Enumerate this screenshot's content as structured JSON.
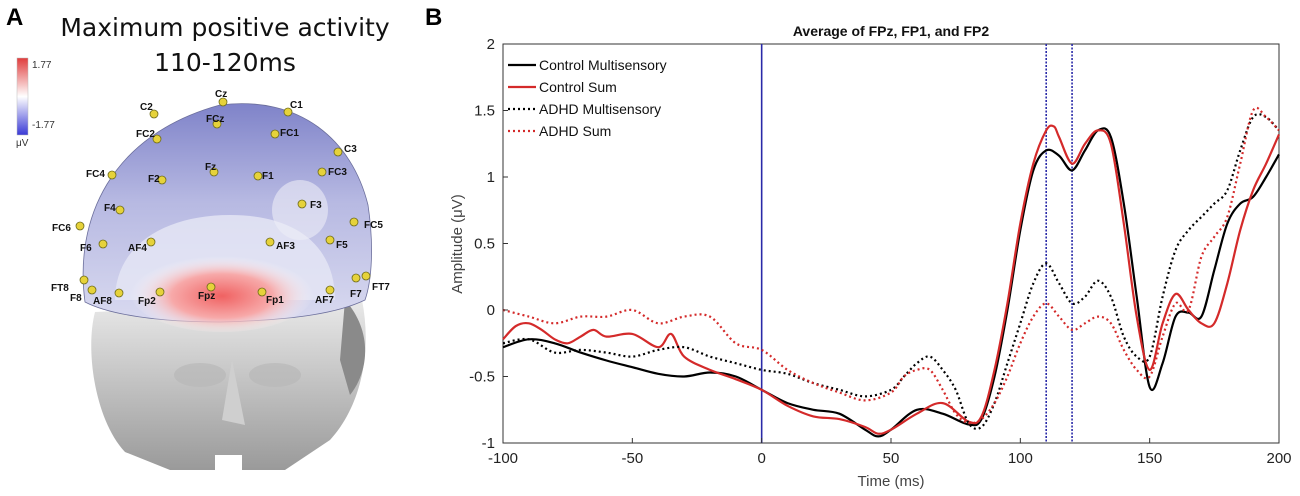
{
  "panels": {
    "a_letter": "A",
    "b_letter": "B"
  },
  "topomap": {
    "title_line1": "Maximum positive activity",
    "title_line2": "110-120ms",
    "colorbar": {
      "max_label": "1.77",
      "min_label": "-1.77",
      "unit": "μV",
      "max_color": "#e03c3c",
      "mid_color": "#ffffff",
      "min_color": "#3a3ad6"
    },
    "electrodes": [
      "Cz",
      "C2",
      "C1",
      "FC2",
      "FCz",
      "FC1",
      "C3",
      "FC4",
      "F2",
      "Fz",
      "F1",
      "FC3",
      "F4",
      "F3",
      "FC6",
      "FC5",
      "F6",
      "AF4",
      "AF3",
      "F5",
      "FT8",
      "F8",
      "AF8",
      "Fp2",
      "Fpz",
      "Fp1",
      "AF7",
      "F7",
      "FT7"
    ]
  },
  "chart_data": {
    "type": "line",
    "title": "Average of FPz, FP1, and FP2",
    "xlabel": "Time (ms)",
    "ylabel": "Amplitude (μV)",
    "xlim": [
      -100,
      200
    ],
    "ylim": [
      -1,
      2
    ],
    "xticks": [
      -100,
      -50,
      0,
      50,
      100,
      150,
      200
    ],
    "yticks": [
      -1,
      -0.5,
      0,
      0.5,
      1,
      1.5,
      2
    ],
    "xtick_labels": [
      "-100",
      "-50",
      "0",
      "50",
      "100",
      "150",
      "200"
    ],
    "ytick_labels": [
      "-1",
      "-0.5",
      "0",
      "0.5",
      "1",
      "1.5",
      "2"
    ],
    "vlines": [
      0,
      110,
      120
    ],
    "vline_color": "#2a2aa8",
    "grid": false,
    "legend_position": "top-left",
    "series": [
      {
        "name": "Control Multisensory",
        "color": "#000000",
        "dash": "solid",
        "x": [
          -100,
          -90,
          -80,
          -70,
          -60,
          -50,
          -40,
          -30,
          -20,
          -10,
          0,
          10,
          20,
          30,
          40,
          45,
          50,
          60,
          70,
          80,
          85,
          90,
          95,
          100,
          105,
          110,
          115,
          120,
          125,
          130,
          135,
          140,
          145,
          150,
          155,
          160,
          165,
          170,
          175,
          180,
          185,
          190,
          195,
          200
        ],
        "y": [
          -0.28,
          -0.22,
          -0.25,
          -0.32,
          -0.38,
          -0.43,
          -0.48,
          -0.5,
          -0.47,
          -0.5,
          -0.6,
          -0.7,
          -0.75,
          -0.78,
          -0.9,
          -0.95,
          -0.9,
          -0.75,
          -0.78,
          -0.86,
          -0.82,
          -0.5,
          0.0,
          0.6,
          1.05,
          1.2,
          1.16,
          1.05,
          1.2,
          1.35,
          1.3,
          0.8,
          0.1,
          -0.58,
          -0.4,
          -0.05,
          -0.02,
          -0.05,
          0.3,
          0.65,
          0.8,
          0.85,
          1.0,
          1.17
        ]
      },
      {
        "name": "Control Sum",
        "color": "#d42a2a",
        "dash": "solid",
        "x": [
          -100,
          -95,
          -90,
          -85,
          -80,
          -75,
          -70,
          -65,
          -60,
          -50,
          -40,
          -35,
          -30,
          -20,
          -10,
          0,
          10,
          20,
          30,
          40,
          45,
          50,
          60,
          70,
          80,
          85,
          90,
          95,
          100,
          105,
          110,
          113,
          115,
          120,
          125,
          130,
          135,
          140,
          145,
          150,
          155,
          160,
          165,
          170,
          175,
          180,
          185,
          190,
          195,
          200
        ],
        "y": [
          -0.22,
          -0.12,
          -0.1,
          -0.15,
          -0.22,
          -0.25,
          -0.2,
          -0.15,
          -0.2,
          -0.18,
          -0.28,
          -0.18,
          -0.35,
          -0.45,
          -0.52,
          -0.6,
          -0.72,
          -0.8,
          -0.82,
          -0.88,
          -0.93,
          -0.9,
          -0.78,
          -0.7,
          -0.84,
          -0.8,
          -0.45,
          0.05,
          0.65,
          1.1,
          1.35,
          1.38,
          1.3,
          1.1,
          1.25,
          1.35,
          1.25,
          0.65,
          -0.05,
          -0.45,
          -0.1,
          0.12,
          0.0,
          -0.1,
          -0.1,
          0.2,
          0.6,
          0.9,
          1.1,
          1.32
        ]
      },
      {
        "name": "ADHD Multisensory",
        "color": "#000000",
        "dash": "dotted",
        "x": [
          -100,
          -90,
          -80,
          -70,
          -60,
          -50,
          -40,
          -30,
          -20,
          -10,
          0,
          10,
          20,
          30,
          40,
          50,
          55,
          60,
          65,
          70,
          75,
          80,
          85,
          90,
          95,
          100,
          105,
          110,
          115,
          120,
          125,
          130,
          135,
          140,
          145,
          150,
          155,
          160,
          165,
          170,
          175,
          180,
          185,
          190,
          195,
          200
        ],
        "y": [
          -0.25,
          -0.22,
          -0.32,
          -0.3,
          -0.32,
          -0.35,
          -0.3,
          -0.28,
          -0.35,
          -0.4,
          -0.45,
          -0.48,
          -0.55,
          -0.6,
          -0.65,
          -0.6,
          -0.5,
          -0.4,
          -0.35,
          -0.45,
          -0.6,
          -0.85,
          -0.88,
          -0.7,
          -0.4,
          -0.1,
          0.2,
          0.35,
          0.2,
          0.05,
          0.1,
          0.22,
          0.1,
          -0.2,
          -0.35,
          -0.35,
          0.1,
          0.45,
          0.6,
          0.7,
          0.8,
          0.9,
          1.2,
          1.45,
          1.45,
          1.35
        ]
      },
      {
        "name": "ADHD Sum",
        "color": "#d42a2a",
        "dash": "dotted",
        "x": [
          -100,
          -90,
          -80,
          -70,
          -60,
          -50,
          -40,
          -30,
          -20,
          -10,
          0,
          10,
          20,
          30,
          40,
          50,
          55,
          60,
          65,
          70,
          75,
          80,
          85,
          90,
          95,
          100,
          105,
          110,
          115,
          120,
          125,
          130,
          135,
          140,
          145,
          150,
          155,
          160,
          165,
          170,
          175,
          180,
          185,
          190,
          195,
          200
        ],
        "y": [
          0.0,
          -0.05,
          -0.1,
          -0.05,
          -0.05,
          0.0,
          -0.1,
          -0.05,
          -0.05,
          -0.25,
          -0.3,
          -0.45,
          -0.55,
          -0.62,
          -0.68,
          -0.62,
          -0.5,
          -0.45,
          -0.45,
          -0.6,
          -0.78,
          -0.85,
          -0.82,
          -0.7,
          -0.5,
          -0.25,
          -0.05,
          0.05,
          -0.05,
          -0.15,
          -0.1,
          -0.05,
          -0.1,
          -0.3,
          -0.45,
          -0.5,
          -0.2,
          0.05,
          0.0,
          0.4,
          0.55,
          0.7,
          1.1,
          1.5,
          1.45,
          1.35
        ]
      }
    ]
  }
}
